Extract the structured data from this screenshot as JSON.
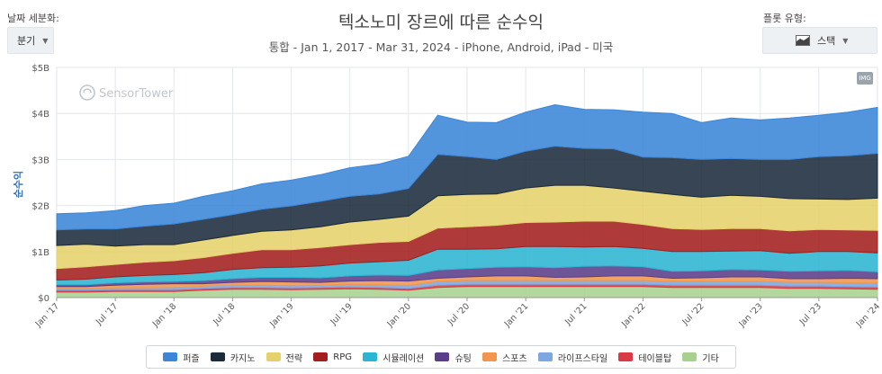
{
  "controls": {
    "granularity_label": "날짜 세분화:",
    "granularity_value": "분기",
    "chart_type_label": "플롯 유형:",
    "chart_type_value": "스택"
  },
  "header": {
    "title": "텍소노미 장르에 따른 순수익",
    "subtitle": "통합 - Jan 1, 2017 - Mar 31, 2024 - iPhone, Android, iPad - 미국"
  },
  "watermark": "SensorTower",
  "img_badge": "IMG",
  "chart_data": {
    "type": "area",
    "stacked": true,
    "title": "텍소노미 장르에 따른 순수익",
    "subtitle": "통합 - Jan 1, 2017 - Mar 31, 2024 - iPhone, Android, iPad - 미국",
    "ylabel": "순수익",
    "ylim": [
      0,
      5
    ],
    "y_unit": "B USD",
    "y_ticks": [
      "$0",
      "$1B",
      "$2B",
      "$3B",
      "$4B",
      "$5B"
    ],
    "x": [
      "2017-Q1",
      "2017-Q2",
      "2017-Q3",
      "2017-Q4",
      "2018-Q1",
      "2018-Q2",
      "2018-Q3",
      "2018-Q4",
      "2019-Q1",
      "2019-Q2",
      "2019-Q3",
      "2019-Q4",
      "2020-Q1",
      "2020-Q2",
      "2020-Q3",
      "2020-Q4",
      "2021-Q1",
      "2021-Q2",
      "2021-Q3",
      "2021-Q4",
      "2022-Q1",
      "2022-Q2",
      "2022-Q3",
      "2022-Q4",
      "2023-Q1",
      "2023-Q2",
      "2023-Q3",
      "2023-Q4",
      "2024-Q1"
    ],
    "x_tick_labels": [
      "Jan '17",
      "Jul '17",
      "Jan '18",
      "Jul '18",
      "Jan '19",
      "Jul '19",
      "Jan '20",
      "Jul '20",
      "Jan '21",
      "Jul '21",
      "Jan '22",
      "Jul '22",
      "Jan '23",
      "Jul '23",
      "Jan '24"
    ],
    "grid": true,
    "legend_position": "bottom",
    "series": [
      {
        "name": "기타",
        "color": "#a9d18e",
        "values": [
          0.12,
          0.12,
          0.13,
          0.13,
          0.13,
          0.16,
          0.18,
          0.18,
          0.17,
          0.18,
          0.19,
          0.18,
          0.16,
          0.22,
          0.24,
          0.24,
          0.24,
          0.24,
          0.24,
          0.24,
          0.24,
          0.22,
          0.22,
          0.22,
          0.22,
          0.2,
          0.2,
          0.19,
          0.18
        ]
      },
      {
        "name": "테이블탑",
        "color": "#d93a45",
        "values": [
          0.04,
          0.04,
          0.04,
          0.04,
          0.04,
          0.04,
          0.04,
          0.04,
          0.04,
          0.04,
          0.04,
          0.04,
          0.04,
          0.05,
          0.05,
          0.05,
          0.05,
          0.05,
          0.05,
          0.05,
          0.05,
          0.05,
          0.05,
          0.05,
          0.05,
          0.05,
          0.05,
          0.05,
          0.05
        ]
      },
      {
        "name": "라이프스타일",
        "color": "#7ea6e0",
        "values": [
          0.04,
          0.04,
          0.04,
          0.04,
          0.05,
          0.05,
          0.05,
          0.05,
          0.05,
          0.05,
          0.06,
          0.06,
          0.06,
          0.08,
          0.08,
          0.08,
          0.08,
          0.08,
          0.08,
          0.08,
          0.08,
          0.08,
          0.08,
          0.08,
          0.08,
          0.08,
          0.08,
          0.08,
          0.08
        ]
      },
      {
        "name": "스포츠",
        "color": "#f0964e",
        "values": [
          0.04,
          0.04,
          0.06,
          0.08,
          0.08,
          0.05,
          0.06,
          0.08,
          0.08,
          0.06,
          0.07,
          0.09,
          0.1,
          0.07,
          0.08,
          0.1,
          0.1,
          0.07,
          0.08,
          0.1,
          0.1,
          0.07,
          0.08,
          0.1,
          0.1,
          0.08,
          0.08,
          0.1,
          0.1
        ]
      },
      {
        "name": "슈팅",
        "color": "#5b3e8a",
        "values": [
          0.04,
          0.04,
          0.05,
          0.05,
          0.05,
          0.07,
          0.08,
          0.09,
          0.1,
          0.1,
          0.11,
          0.12,
          0.12,
          0.18,
          0.18,
          0.19,
          0.2,
          0.21,
          0.23,
          0.22,
          0.2,
          0.15,
          0.15,
          0.16,
          0.15,
          0.16,
          0.17,
          0.17,
          0.15
        ]
      },
      {
        "name": "시뮬레이션",
        "color": "#2cb5d3",
        "values": [
          0.1,
          0.12,
          0.13,
          0.14,
          0.15,
          0.17,
          0.2,
          0.21,
          0.22,
          0.26,
          0.28,
          0.29,
          0.33,
          0.45,
          0.42,
          0.4,
          0.44,
          0.46,
          0.42,
          0.42,
          0.4,
          0.43,
          0.42,
          0.4,
          0.42,
          0.39,
          0.42,
          0.41,
          0.41
        ]
      },
      {
        "name": "RPG",
        "color": "#a31f1f",
        "values": [
          0.25,
          0.27,
          0.27,
          0.29,
          0.3,
          0.33,
          0.35,
          0.39,
          0.38,
          0.4,
          0.4,
          0.42,
          0.41,
          0.46,
          0.49,
          0.51,
          0.52,
          0.53,
          0.56,
          0.55,
          0.52,
          0.5,
          0.48,
          0.49,
          0.48,
          0.49,
          0.48,
          0.47,
          0.49
        ]
      },
      {
        "name": "전략",
        "color": "#e6d26c",
        "values": [
          0.5,
          0.49,
          0.4,
          0.38,
          0.35,
          0.38,
          0.39,
          0.4,
          0.43,
          0.45,
          0.49,
          0.5,
          0.55,
          0.7,
          0.7,
          0.68,
          0.75,
          0.8,
          0.78,
          0.72,
          0.72,
          0.74,
          0.7,
          0.72,
          0.7,
          0.7,
          0.66,
          0.66,
          0.7
        ]
      },
      {
        "name": "카지노",
        "color": "#1b2b3c",
        "values": [
          0.34,
          0.33,
          0.37,
          0.4,
          0.45,
          0.45,
          0.45,
          0.48,
          0.52,
          0.55,
          0.56,
          0.55,
          0.6,
          0.9,
          0.82,
          0.75,
          0.8,
          0.85,
          0.8,
          0.85,
          0.74,
          0.8,
          0.82,
          0.8,
          0.8,
          0.85,
          0.92,
          0.95,
          0.97
        ]
      },
      {
        "name": "퍼즐",
        "color": "#3b86d8",
        "values": [
          0.35,
          0.35,
          0.4,
          0.45,
          0.45,
          0.5,
          0.52,
          0.55,
          0.56,
          0.58,
          0.62,
          0.65,
          0.7,
          0.85,
          0.75,
          0.8,
          0.85,
          0.9,
          0.85,
          0.85,
          0.98,
          0.96,
          0.8,
          0.88,
          0.86,
          0.9,
          0.9,
          0.95,
          1.0
        ]
      }
    ]
  }
}
